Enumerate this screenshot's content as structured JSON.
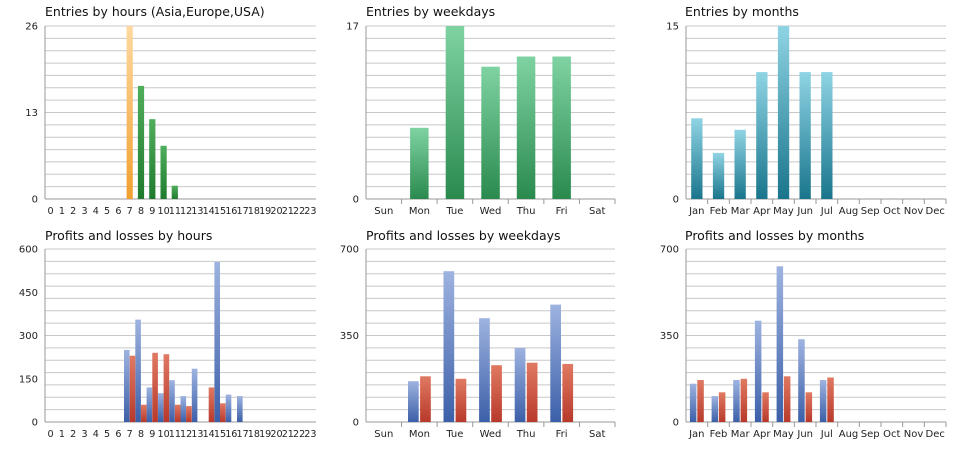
{
  "hours_labels": [
    "0",
    "1",
    "2",
    "3",
    "4",
    "5",
    "6",
    "7",
    "8",
    "9",
    "10",
    "11",
    "12",
    "13",
    "14",
    "15",
    "16",
    "17",
    "18",
    "19",
    "20",
    "21",
    "22",
    "23"
  ],
  "weekday_labels": [
    "Sun",
    "Mon",
    "Tue",
    "Wed",
    "Thu",
    "Fri",
    "Sat"
  ],
  "month_labels": [
    "Jan",
    "Feb",
    "Mar",
    "Apr",
    "May",
    "Jun",
    "Jul",
    "Aug",
    "Sep",
    "Oct",
    "Nov",
    "Dec"
  ],
  "colors": {
    "orange": "#f0a030",
    "green_dark": "#1f7a2e",
    "green_light": "#7fd3a2",
    "teal": "#2e9fb6",
    "blue": "#3b5fa8",
    "red": "#b8392b",
    "grid": "#c8c8c8"
  },
  "chart_data": [
    {
      "id": "c1",
      "type": "bar",
      "title": "Entries by hours (Asia,Europe,USA)",
      "axis": "hours",
      "ylim": [
        0,
        26
      ],
      "yticks": [
        "0",
        "13",
        "26"
      ],
      "series": [
        {
          "values": [
            0,
            0,
            0,
            0,
            0,
            0,
            0,
            26,
            17,
            12,
            8,
            2,
            0,
            0,
            0,
            0,
            0,
            0,
            0,
            0,
            0,
            0,
            0,
            0
          ]
        }
      ]
    },
    {
      "id": "c2",
      "type": "bar",
      "title": "Entries by weekdays",
      "axis": "weekdays",
      "ylim": [
        0,
        17
      ],
      "yticks": [
        "0",
        "17"
      ],
      "series": [
        {
          "values": [
            0,
            7,
            17,
            13,
            14,
            14,
            0
          ]
        }
      ]
    },
    {
      "id": "c3",
      "type": "bar",
      "title": "Entries by months",
      "axis": "months",
      "ylim": [
        0,
        15
      ],
      "yticks": [
        "0",
        "15"
      ],
      "series": [
        {
          "values": [
            7,
            4,
            6,
            11,
            15,
            11,
            11,
            0,
            0,
            0,
            0,
            0
          ]
        }
      ]
    },
    {
      "id": "c4",
      "type": "bar",
      "title": "Profits and losses by hours",
      "axis": "hours",
      "ylim": [
        0,
        600
      ],
      "yticks": [
        "0",
        "150",
        "300",
        "450",
        "600"
      ],
      "series": [
        {
          "values": [
            0,
            0,
            0,
            0,
            0,
            0,
            0,
            250,
            355,
            120,
            100,
            145,
            90,
            185,
            0,
            555,
            95,
            90,
            0,
            0,
            0,
            0,
            0,
            0
          ]
        },
        {
          "values": [
            0,
            0,
            0,
            0,
            0,
            0,
            0,
            230,
            60,
            240,
            235,
            60,
            55,
            0,
            120,
            65,
            0,
            0,
            0,
            0,
            0,
            0,
            0,
            0
          ]
        }
      ]
    },
    {
      "id": "c5",
      "type": "bar",
      "title": "Profits and losses by weekdays",
      "axis": "weekdays",
      "ylim": [
        0,
        700
      ],
      "yticks": [
        "0",
        "350",
        "700"
      ],
      "series": [
        {
          "values": [
            0,
            165,
            610,
            420,
            300,
            475,
            0
          ]
        },
        {
          "values": [
            0,
            185,
            175,
            230,
            240,
            235,
            0
          ]
        }
      ]
    },
    {
      "id": "c6",
      "type": "bar",
      "title": "Profits and losses by months",
      "axis": "months",
      "ylim": [
        0,
        700
      ],
      "yticks": [
        "0",
        "350",
        "700"
      ],
      "series": [
        {
          "values": [
            155,
            105,
            170,
            410,
            630,
            335,
            170,
            0,
            0,
            0,
            0,
            0
          ]
        },
        {
          "values": [
            170,
            120,
            175,
            120,
            185,
            120,
            180,
            0,
            0,
            0,
            0,
            0
          ]
        }
      ]
    }
  ]
}
